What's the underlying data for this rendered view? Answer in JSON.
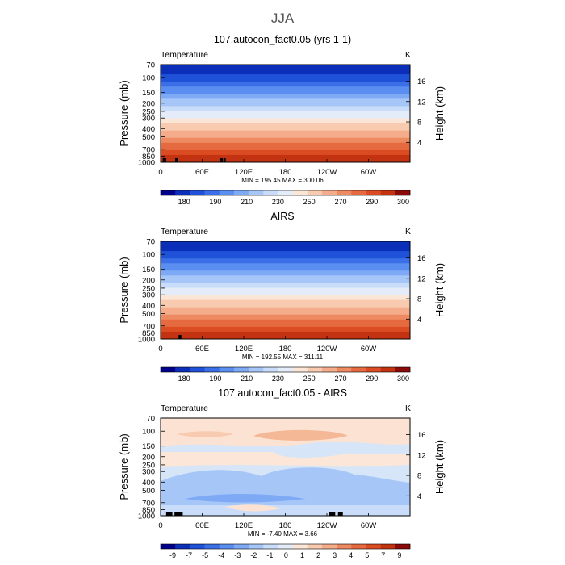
{
  "page_title": "JJA",
  "chart_data": [
    {
      "type": "heatmap",
      "title": "107.autocon_fact0.05 (yrs 1-1)",
      "variable_label": "Temperature",
      "units": "K",
      "ylabel": "Pressure (mb)",
      "right_ylabel": "Height (km)",
      "xlabel": "",
      "x_ticks": [
        "0",
        "60E",
        "120E",
        "180",
        "120W",
        "60W"
      ],
      "x_tick_values": [
        0,
        60,
        120,
        180,
        240,
        300
      ],
      "xlim": [
        0,
        360
      ],
      "y_ticks": [
        "70",
        "100",
        "150",
        "200",
        "250",
        "300",
        "400",
        "500",
        "700",
        "850",
        "1000"
      ],
      "y_tick_values": [
        70,
        100,
        150,
        200,
        250,
        300,
        400,
        500,
        700,
        850,
        1000
      ],
      "ylim": [
        70,
        1000
      ],
      "height_ticks": [
        "16",
        "12",
        "8",
        "4"
      ],
      "height_tick_values": [
        16,
        12,
        8,
        4
      ],
      "stats": "MIN = 195.45   MAX = 300.06",
      "min": 195.45,
      "max": 300.06,
      "colorbar_labels": [
        "180",
        "190",
        "210",
        "230",
        "250",
        "270",
        "290",
        "300"
      ],
      "colorbar_colors": [
        "#00008b",
        "#0b2fb8",
        "#1f52d8",
        "#3a6fe8",
        "#5a8ef0",
        "#7eaaf5",
        "#a6c6f8",
        "#c9dcf9",
        "#e3ecf8",
        "#fbe6d7",
        "#f8cbb0",
        "#f4ac8a",
        "#ee8a62",
        "#e66a40",
        "#dc4c22",
        "#c33312",
        "#8b0a0a"
      ],
      "field": "temperature",
      "surface_blocks_lon": [
        [
          3,
          8
        ],
        [
          21,
          25
        ],
        [
          86,
          90
        ],
        [
          92,
          94
        ]
      ]
    },
    {
      "type": "heatmap",
      "title": "AIRS",
      "variable_label": "Temperature",
      "units": "K",
      "ylabel": "Pressure (mb)",
      "right_ylabel": "Height (km)",
      "xlabel": "",
      "x_ticks": [
        "0",
        "60E",
        "120E",
        "180",
        "120W",
        "60W"
      ],
      "x_tick_values": [
        0,
        60,
        120,
        180,
        240,
        300
      ],
      "xlim": [
        0,
        360
      ],
      "y_ticks": [
        "70",
        "100",
        "150",
        "200",
        "250",
        "300",
        "400",
        "500",
        "700",
        "850",
        "1000"
      ],
      "y_tick_values": [
        70,
        100,
        150,
        200,
        250,
        300,
        400,
        500,
        700,
        850,
        1000
      ],
      "ylim": [
        70,
        1000
      ],
      "height_ticks": [
        "16",
        "12",
        "8",
        "4"
      ],
      "height_tick_values": [
        16,
        12,
        8,
        4
      ],
      "stats": "MIN = 192.55   MAX = 311.11",
      "min": 192.55,
      "max": 311.11,
      "colorbar_labels": [
        "180",
        "190",
        "210",
        "230",
        "250",
        "270",
        "290",
        "300"
      ],
      "colorbar_colors": [
        "#00008b",
        "#0b2fb8",
        "#1f52d8",
        "#3a6fe8",
        "#5a8ef0",
        "#7eaaf5",
        "#a6c6f8",
        "#c9dcf9",
        "#e3ecf8",
        "#fbe6d7",
        "#f8cbb0",
        "#f4ac8a",
        "#ee8a62",
        "#e66a40",
        "#dc4c22",
        "#c33312",
        "#8b0a0a"
      ],
      "field": "temperature",
      "surface_blocks_lon": [
        [
          26,
          30
        ]
      ]
    },
    {
      "type": "heatmap",
      "title": "107.autocon_fact0.05 - AIRS",
      "variable_label": "Temperature",
      "units": "K",
      "ylabel": "Pressure (mb)",
      "right_ylabel": "Height (km)",
      "xlabel": "",
      "x_ticks": [
        "0",
        "60E",
        "120E",
        "180",
        "120W",
        "60W"
      ],
      "x_tick_values": [
        0,
        60,
        120,
        180,
        240,
        300
      ],
      "xlim": [
        0,
        360
      ],
      "y_ticks": [
        "70",
        "100",
        "150",
        "200",
        "250",
        "300",
        "400",
        "500",
        "700",
        "850",
        "1000"
      ],
      "y_tick_values": [
        70,
        100,
        150,
        200,
        250,
        300,
        400,
        500,
        700,
        850,
        1000
      ],
      "ylim": [
        70,
        1000
      ],
      "height_ticks": [
        "16",
        "12",
        "8",
        "4"
      ],
      "height_tick_values": [
        16,
        12,
        8,
        4
      ],
      "stats": "MIN = -7.40   MAX =   3.66",
      "min": -7.4,
      "max": 3.66,
      "colorbar_labels": [
        "-9",
        "-7",
        "-5",
        "-4",
        "-3",
        "-2",
        "-1",
        "0",
        "1",
        "2",
        "3",
        "4",
        "5",
        "7",
        "9"
      ],
      "colorbar_colors": [
        "#00008b",
        "#0b2fb8",
        "#1f52d8",
        "#3a6fe8",
        "#5a8ef0",
        "#7eaaf5",
        "#a6c6f8",
        "#c9dcf9",
        "#e3ecf8",
        "#fbe6d7",
        "#f8cbb0",
        "#f4ac8a",
        "#ee8a62",
        "#e66a40",
        "#dc4c22",
        "#c33312",
        "#8b0a0a"
      ],
      "field": "difference",
      "surface_blocks_lon": [
        [
          8,
          17
        ],
        [
          20,
          32
        ],
        [
          243,
          252
        ],
        [
          256,
          263
        ]
      ]
    }
  ]
}
